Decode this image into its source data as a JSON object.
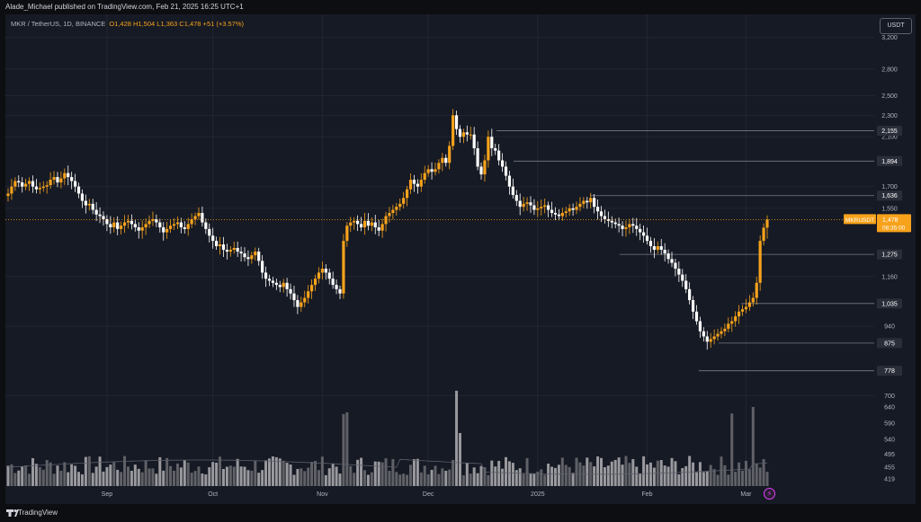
{
  "header": {
    "published": "Alade_Michael published on TradingView.com, Feb 21, 2025 16:25 UTC+1"
  },
  "legend": {
    "symbol": "MKR / TetherUS, 1D, BINANCE",
    "ohlc": "O1,428 H1,504 L1,363 C1,478 +51 (+3.57%)"
  },
  "currency_button": "USDT",
  "price_axis": {
    "ticks": [
      "3,200",
      "2,800",
      "2,500",
      "2,300",
      "2,100",
      "1,700",
      "1,550",
      "1,160",
      "940",
      "700",
      "640",
      "590",
      "540",
      "495",
      "455",
      "419"
    ]
  },
  "time_axis": {
    "labels": [
      "Sep",
      "Oct",
      "Nov",
      "Dec",
      "2025",
      "Feb",
      "Mar"
    ]
  },
  "levels": [
    "2,155",
    "1,894",
    "1,636",
    "1,275",
    "1,035",
    "875",
    "778"
  ],
  "last_price": {
    "symbol": "MKRUSDT",
    "price": "1,478",
    "countdown": "08:35:00"
  },
  "footer": {
    "brand": "TradingView"
  },
  "colors": {
    "up": "#f7a21b",
    "down": "#ffffff",
    "level_line": "#787b86",
    "background": "#161a24",
    "grid": "#232632"
  },
  "chart_data": {
    "type": "candlestick",
    "symbol": "MKR / TetherUS",
    "interval": "1D",
    "exchange": "BINANCE",
    "scale": "log",
    "ylim": [
      680,
      3450
    ],
    "xlabels": [
      "Sep",
      "Oct",
      "Nov",
      "Dec",
      "2025",
      "Feb",
      "Mar"
    ],
    "price_levels": [
      2155,
      1894,
      1636,
      1275,
      1035,
      875,
      778
    ],
    "last": {
      "open": 1428,
      "high": 1504,
      "low": 1363,
      "close": 1478
    },
    "series": [
      {
        "name": "MKRUSDT",
        "close_path": [
          1650,
          1700,
          1740,
          1730,
          1700,
          1720,
          1740,
          1700,
          1680,
          1690,
          1700,
          1710,
          1750,
          1770,
          1730,
          1760,
          1800,
          1770,
          1740,
          1700,
          1650,
          1600,
          1570,
          1580,
          1540,
          1510,
          1500,
          1480,
          1450,
          1430,
          1460,
          1420,
          1440,
          1460,
          1470,
          1450,
          1430,
          1410,
          1430,
          1450,
          1470,
          1480,
          1460,
          1430,
          1400,
          1420,
          1440,
          1450,
          1460,
          1430,
          1420,
          1450,
          1480,
          1500,
          1520,
          1460,
          1420,
          1380,
          1350,
          1320,
          1330,
          1300,
          1290,
          1300,
          1310,
          1290,
          1280,
          1260,
          1250,
          1270,
          1290,
          1240,
          1180,
          1150,
          1140,
          1130,
          1120,
          1110,
          1130,
          1100,
          1080,
          1050,
          1020,
          1040,
          1060,
          1090,
          1120,
          1150,
          1180,
          1200,
          1180,
          1150,
          1120,
          1100,
          1080,
          1350,
          1440,
          1460,
          1470,
          1450,
          1430,
          1470,
          1440,
          1460,
          1430,
          1410,
          1450,
          1500,
          1520,
          1540,
          1560,
          1580,
          1620,
          1680,
          1750,
          1720,
          1700,
          1750,
          1800,
          1830,
          1810,
          1830,
          1880,
          1920,
          1880,
          2020,
          2300,
          2170,
          2100,
          2140,
          2120,
          2120,
          2000,
          1850,
          1790,
          1900,
          2100,
          2000,
          1980,
          1900,
          1850,
          1780,
          1700,
          1640,
          1600,
          1560,
          1580,
          1590,
          1570,
          1540,
          1550,
          1560,
          1570,
          1540,
          1520,
          1510,
          1500,
          1520,
          1530,
          1550,
          1540,
          1560,
          1580,
          1600,
          1590,
          1620,
          1560,
          1530,
          1500,
          1480,
          1470,
          1460,
          1450,
          1440,
          1420,
          1430,
          1450,
          1440,
          1420,
          1400,
          1380,
          1350,
          1320,
          1300,
          1320,
          1300,
          1280,
          1250,
          1230,
          1200,
          1170,
          1140,
          1100,
          1050,
          1000,
          960,
          920,
          900,
          880,
          890,
          900,
          910,
          920,
          930,
          950,
          960,
          980,
          1000,
          1010,
          1020,
          1040,
          1060,
          1130,
          1350,
          1428,
          1478
        ]
      }
    ]
  }
}
